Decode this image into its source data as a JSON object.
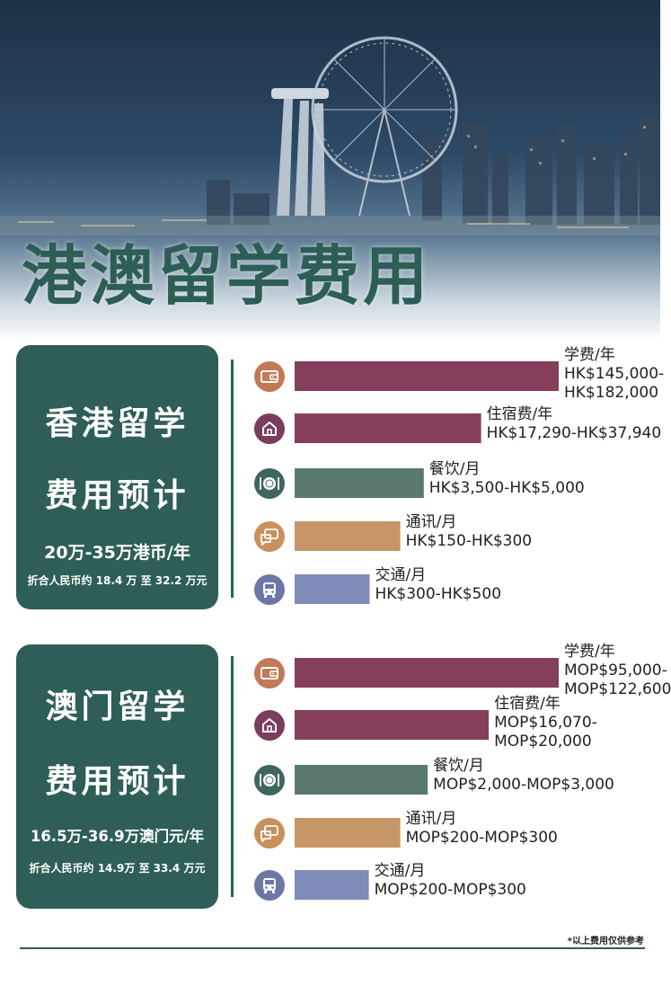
{
  "hero": {
    "title": "港澳留学费用"
  },
  "hong_kong": {
    "title_line1": "香港留学",
    "title_line2": "费用预计",
    "total": "20万-35万港币/年",
    "rmb_note": "折合人民币约 18.4 万 至 32.2 万元"
  },
  "macau": {
    "title_line1": "澳门留学",
    "title_line2": "费用预计",
    "total": "16.5万-36.9万澳门元/年",
    "rmb_note": "折合人民币约 14.9万 至 33.4 万元"
  },
  "footnote": "*以上费用仅供参考",
  "colors": {
    "tuition": "#853f5c",
    "housing": "#853f5c",
    "food": "#5a7a70",
    "telecom": "#c79668",
    "transport": "#7f8cb9",
    "icon_tuition": "#c17a55",
    "icon_housing": "#7a3d5e",
    "icon_food": "#3e6660",
    "icon_telecom": "#c9905d",
    "icon_transport": "#6c77a6",
    "panel": "#2e5e57"
  },
  "chart_data": [
    {
      "type": "bar",
      "orientation": "horizontal",
      "region": "香港",
      "categories": [
        "学费/年",
        "住宿费/年",
        "餐饮/月",
        "通讯/月",
        "交通/月"
      ],
      "icons": [
        "wallet-icon",
        "home-icon",
        "dining-icon",
        "chat-icon",
        "bus-icon"
      ],
      "value_labels": [
        "HK$145,000-\nHK$182,000",
        "HK$17,290-HK$37,940",
        "HK$3,500-HK$5,000",
        "HK$150-HK$300",
        "HK$300-HK$500"
      ],
      "relative_lengths": [
        1.0,
        0.706,
        0.489,
        0.4,
        0.284
      ]
    },
    {
      "type": "bar",
      "orientation": "horizontal",
      "region": "澳门",
      "categories": [
        "学费/年",
        "住宿费/年",
        "餐饮/月",
        "通讯/月",
        "交通/月"
      ],
      "icons": [
        "wallet-icon",
        "home-icon",
        "dining-icon",
        "chat-icon",
        "bus-icon"
      ],
      "value_labels": [
        "MOP$95,000-\nMOP$122,600",
        "MOP$16,070-\nMOP$20,000",
        "MOP$2,000-MOP$3,000",
        "MOP$200-MOP$300",
        "MOP$200-MOP$300"
      ],
      "relative_lengths": [
        1.0,
        0.735,
        0.504,
        0.4,
        0.281
      ]
    }
  ]
}
